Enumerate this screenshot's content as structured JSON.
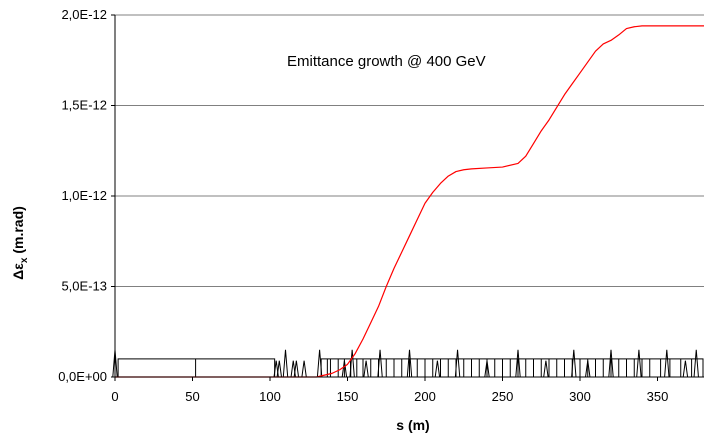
{
  "chart_data": {
    "type": "line",
    "title": "",
    "annotation": "Emittance growth @ 400 GeV",
    "xlabel": "s (m)",
    "ylabel_main": "Δε",
    "ylabel_sub": "x",
    "ylabel_tail": " (m.rad)",
    "xlim": [
      0,
      380
    ],
    "ylim": [
      0,
      2e-12
    ],
    "x_ticks": [
      0,
      50,
      100,
      150,
      200,
      250,
      300,
      350
    ],
    "x_tick_labels": [
      "0",
      "50",
      "100",
      "150",
      "200",
      "250",
      "300",
      "350"
    ],
    "y_ticks": [
      0,
      5e-13,
      1e-12,
      1.5e-12,
      2e-12
    ],
    "y_tick_labels": [
      "0,0E+00",
      "5,0E-13",
      "1,0E-12",
      "1,5E-12",
      "2,0E-12"
    ],
    "grid": "horizontal",
    "series": [
      {
        "color": "#ff0000",
        "x": [
          0,
          100,
          130,
          140,
          145,
          150,
          155,
          160,
          165,
          170,
          175,
          180,
          185,
          190,
          195,
          200,
          205,
          210,
          215,
          220,
          225,
          230,
          240,
          250,
          260,
          265,
          270,
          275,
          280,
          285,
          290,
          295,
          300,
          305,
          310,
          315,
          320,
          325,
          330,
          335,
          340,
          345,
          350,
          360,
          370,
          380
        ],
        "y": [
          0,
          0,
          0,
          2e-14,
          4e-14,
          7e-14,
          1.3e-13,
          2.1e-13,
          3e-13,
          3.9e-13,
          5e-13,
          6e-13,
          6.9e-13,
          7.8e-13,
          8.7e-13,
          9.6e-13,
          1.02e-12,
          1.07e-12,
          1.11e-12,
          1.135e-12,
          1.145e-12,
          1.15e-12,
          1.155e-12,
          1.16e-12,
          1.18e-12,
          1.22e-12,
          1.29e-12,
          1.36e-12,
          1.42e-12,
          1.49e-12,
          1.56e-12,
          1.62e-12,
          1.68e-12,
          1.74e-12,
          1.8e-12,
          1.84e-12,
          1.86e-12,
          1.89e-12,
          1.925e-12,
          1.935e-12,
          1.94e-12,
          1.94e-12,
          1.94e-12,
          1.94e-12,
          1.94e-12,
          1.94e-12
        ]
      }
    ],
    "lattice": {
      "color": "#000000",
      "boxes": [
        [
          2,
          103
        ],
        [
          133,
          152
        ],
        [
          152,
          380
        ]
      ],
      "box_height": 1e-13,
      "dividers": [
        52,
        137,
        139,
        144,
        148,
        152,
        156,
        160,
        165,
        170,
        175,
        180,
        185,
        190,
        195,
        200,
        205,
        210,
        215,
        220,
        225,
        230,
        235,
        240,
        245,
        250,
        255,
        260,
        265,
        270,
        275,
        280,
        285,
        290,
        295,
        300,
        305,
        310,
        315,
        320,
        325,
        330,
        335,
        340,
        345,
        352,
        358,
        365,
        372
      ],
      "spikes": [
        [
          0,
          1.5e-13
        ],
        [
          104,
          9e-14
        ],
        [
          106,
          9e-14
        ],
        [
          110,
          1.5e-13
        ],
        [
          115,
          9e-14
        ],
        [
          117,
          9e-14
        ],
        [
          122,
          9e-14
        ],
        [
          132,
          1.5e-13
        ],
        [
          148,
          9e-14
        ],
        [
          153,
          1.5e-13
        ],
        [
          162,
          9e-14
        ],
        [
          171,
          1.5e-13
        ],
        [
          190,
          1.5e-13
        ],
        [
          208,
          9e-14
        ],
        [
          221,
          1.5e-13
        ],
        [
          240,
          9e-14
        ],
        [
          260,
          1.5e-13
        ],
        [
          278,
          9e-14
        ],
        [
          296,
          1.5e-13
        ],
        [
          305,
          9e-14
        ],
        [
          320,
          1.5e-13
        ],
        [
          338,
          1.5e-13
        ],
        [
          356,
          1.5e-13
        ],
        [
          368,
          9e-14
        ],
        [
          375,
          1.5e-13
        ]
      ]
    }
  }
}
